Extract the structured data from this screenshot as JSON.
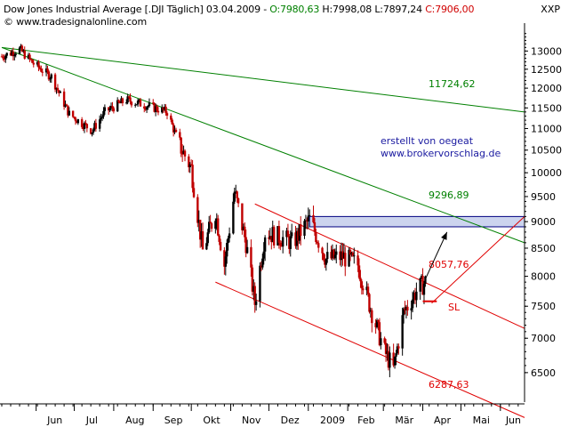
{
  "header": {
    "instrument": "Dow Jones Industrial Average [.DJI  Täglich] 03.04.2009 - ",
    "open": "O:7980,63",
    "hl": " H:7998,08 L:7897,24 ",
    "close": "C:7906,00",
    "source": "© www.tradesignalonline.com",
    "scale_label": "XXP"
  },
  "annotation": {
    "line1": "erstellt von oegeat",
    "line2": "www.brokervorschlag.de"
  },
  "colors": {
    "up": "#000000",
    "down": "#c00000",
    "resistance_line": "#008000",
    "channel_line": "#e00000",
    "zone_fill": "#ccd4ee",
    "zone_border": "#000080",
    "annotation_text": "#1a1aa0"
  },
  "chart_data": {
    "type": "candlestick",
    "y_axis": {
      "ticks": [
        13000,
        12500,
        12000,
        11500,
        11000,
        10500,
        10000,
        9500,
        9000,
        8500,
        8000,
        7500,
        7000,
        6500
      ],
      "tick_labels": [
        "13000",
        "12500",
        "12000",
        "11500",
        "11000",
        "10500",
        "10000",
        "9500",
        "9000",
        "8500",
        "8000",
        "7500",
        "7000",
        "6500"
      ],
      "scale": "log",
      "range": [
        6100,
        13700
      ]
    },
    "x_axis": {
      "labels": [
        "Jun",
        "Jul",
        "Aug",
        "Sep",
        "Okt",
        "Nov",
        "Dez",
        "2009",
        "Feb",
        "Mär",
        "Apr",
        "Mai",
        "Jun"
      ],
      "range": [
        "2008-05-05",
        "2009-06-20"
      ]
    },
    "grid": false,
    "levels": [
      {
        "label": "11724,62",
        "value": 11724.62
      },
      {
        "label": "9296,89",
        "value": 9296.89
      },
      {
        "label": "8057,76",
        "value": 8057.76
      },
      {
        "label": "6287,63",
        "value": 6287.63
      },
      {
        "label": "SL",
        "value": 7580
      }
    ],
    "price_path": [
      {
        "date": "2008-05-05",
        "close": 12850
      },
      {
        "date": "2008-05-19",
        "close": 13050
      },
      {
        "date": "2008-05-30",
        "close": 12650
      },
      {
        "date": "2008-06-13",
        "close": 12300
      },
      {
        "date": "2008-06-27",
        "close": 11350
      },
      {
        "date": "2008-07-15",
        "close": 10950
      },
      {
        "date": "2008-07-25",
        "close": 11400
      },
      {
        "date": "2008-08-11",
        "close": 11700
      },
      {
        "date": "2008-08-28",
        "close": 11550
      },
      {
        "date": "2008-09-12",
        "close": 11400
      },
      {
        "date": "2008-09-22",
        "close": 10600
      },
      {
        "date": "2008-10-01",
        "close": 10100
      },
      {
        "date": "2008-10-10",
        "close": 8450
      },
      {
        "date": "2008-10-20",
        "close": 9200
      },
      {
        "date": "2008-10-27",
        "close": 8200
      },
      {
        "date": "2008-11-04",
        "close": 9600
      },
      {
        "date": "2008-11-13",
        "close": 8600
      },
      {
        "date": "2008-11-20",
        "close": 7550
      },
      {
        "date": "2008-11-28",
        "close": 8800
      },
      {
        "date": "2008-12-10",
        "close": 8700
      },
      {
        "date": "2008-12-20",
        "close": 8600
      },
      {
        "date": "2009-01-02",
        "close": 9050
      },
      {
        "date": "2009-01-15",
        "close": 8300
      },
      {
        "date": "2009-01-28",
        "close": 8350
      },
      {
        "date": "2009-02-09",
        "close": 8200
      },
      {
        "date": "2009-02-20",
        "close": 7400
      },
      {
        "date": "2009-03-02",
        "close": 6800
      },
      {
        "date": "2009-03-09",
        "close": 6550
      },
      {
        "date": "2009-03-17",
        "close": 7400
      },
      {
        "date": "2009-03-27",
        "close": 7750
      },
      {
        "date": "2009-04-03",
        "close": 7906
      }
    ],
    "trendlines": [
      {
        "name": "resistance-long",
        "color": "resistance_line",
        "from": {
          "date": "2008-05-05",
          "value": 13100
        },
        "to": {
          "date": "2009-06-20",
          "value": 11400
        }
      },
      {
        "name": "resistance-mid",
        "color": "resistance_line",
        "from": {
          "date": "2008-05-05",
          "value": 13100
        },
        "to": {
          "date": "2009-06-20",
          "value": 8600
        }
      },
      {
        "name": "channel-upper",
        "color": "channel_line",
        "from": {
          "date": "2008-11-20",
          "value": 9350
        },
        "to": {
          "date": "2009-06-20",
          "value": 7150
        }
      },
      {
        "name": "channel-lower",
        "color": "channel_line",
        "from": {
          "date": "2008-10-20",
          "value": 7900
        },
        "to": {
          "date": "2009-06-20",
          "value": 5900
        }
      },
      {
        "name": "support-rising",
        "color": "channel_line",
        "from": {
          "date": "2009-04-08",
          "value": 7550
        },
        "to": {
          "date": "2009-06-20",
          "value": 9100
        }
      }
    ],
    "target_zone": {
      "from_date": "2009-01-02",
      "to_date": "2009-06-20",
      "low": 8900,
      "high": 9100
    },
    "arrow": {
      "from": {
        "date": "2009-04-03",
        "value": 7950
      },
      "to": {
        "date": "2009-04-20",
        "value": 8800
      }
    }
  }
}
